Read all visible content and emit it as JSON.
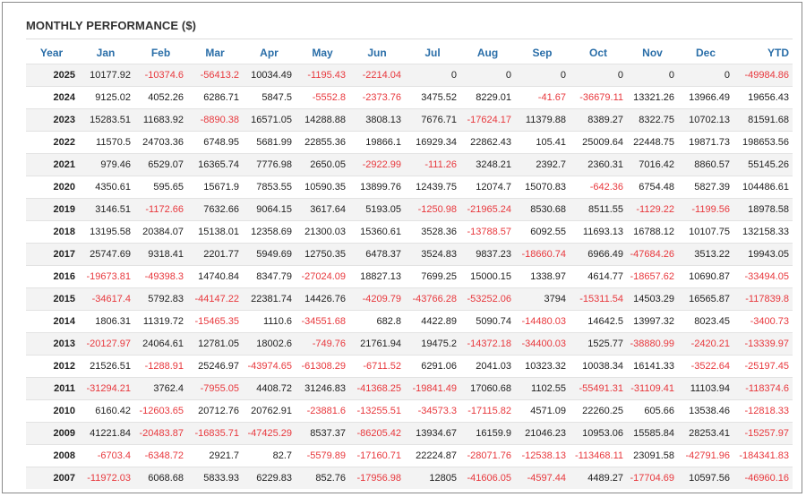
{
  "title": "MONTHLY PERFORMANCE ($)",
  "colors": {
    "header": "#2a6ea8",
    "negative": "#e8383d",
    "positive": "#222222",
    "stripe": "#f3f3f3"
  },
  "chart_data": {
    "type": "table",
    "title": "MONTHLY PERFORMANCE ($)",
    "columns": [
      "Year",
      "Jan",
      "Feb",
      "Mar",
      "Apr",
      "May",
      "Jun",
      "Jul",
      "Aug",
      "Sep",
      "Oct",
      "Nov",
      "Dec",
      "YTD"
    ],
    "rows": [
      [
        "2025",
        "10177.92",
        "-10374.6",
        "-56413.2",
        "10034.49",
        "-1195.43",
        "-2214.04",
        "0",
        "0",
        "0",
        "0",
        "0",
        "0",
        "-49984.86"
      ],
      [
        "2024",
        "9125.02",
        "4052.26",
        "6286.71",
        "5847.5",
        "-5552.8",
        "-2373.76",
        "3475.52",
        "8229.01",
        "-41.67",
        "-36679.11",
        "13321.26",
        "13966.49",
        "19656.43"
      ],
      [
        "2023",
        "15283.51",
        "11683.92",
        "-8890.38",
        "16571.05",
        "14288.88",
        "3808.13",
        "7676.71",
        "-17624.17",
        "11379.88",
        "8389.27",
        "8322.75",
        "10702.13",
        "81591.68"
      ],
      [
        "2022",
        "11570.5",
        "24703.36",
        "6748.95",
        "5681.99",
        "22855.36",
        "19866.1",
        "16929.34",
        "22862.43",
        "105.41",
        "25009.64",
        "22448.75",
        "19871.73",
        "198653.56"
      ],
      [
        "2021",
        "979.46",
        "6529.07",
        "16365.74",
        "7776.98",
        "2650.05",
        "-2922.99",
        "-111.26",
        "3248.21",
        "2392.7",
        "2360.31",
        "7016.42",
        "8860.57",
        "55145.26"
      ],
      [
        "2020",
        "4350.61",
        "595.65",
        "15671.9",
        "7853.55",
        "10590.35",
        "13899.76",
        "12439.75",
        "12074.7",
        "15070.83",
        "-642.36",
        "6754.48",
        "5827.39",
        "104486.61"
      ],
      [
        "2019",
        "3146.51",
        "-1172.66",
        "7632.66",
        "9064.15",
        "3617.64",
        "5193.05",
        "-1250.98",
        "-21965.24",
        "8530.68",
        "8511.55",
        "-1129.22",
        "-1199.56",
        "18978.58"
      ],
      [
        "2018",
        "13195.58",
        "20384.07",
        "15138.01",
        "12358.69",
        "21300.03",
        "15360.61",
        "3528.36",
        "-13788.57",
        "6092.55",
        "11693.13",
        "16788.12",
        "10107.75",
        "132158.33"
      ],
      [
        "2017",
        "25747.69",
        "9318.41",
        "2201.77",
        "5949.69",
        "12750.35",
        "6478.37",
        "3524.83",
        "9837.23",
        "-18660.74",
        "6966.49",
        "-47684.26",
        "3513.22",
        "19943.05"
      ],
      [
        "2016",
        "-19673.81",
        "-49398.3",
        "14740.84",
        "8347.79",
        "-27024.09",
        "18827.13",
        "7699.25",
        "15000.15",
        "1338.97",
        "4614.77",
        "-18657.62",
        "10690.87",
        "-33494.05"
      ],
      [
        "2015",
        "-34617.4",
        "5792.83",
        "-44147.22",
        "22381.74",
        "14426.76",
        "-4209.79",
        "-43766.28",
        "-53252.06",
        "3794",
        "-15311.54",
        "14503.29",
        "16565.87",
        "-117839.8"
      ],
      [
        "2014",
        "1806.31",
        "11319.72",
        "-15465.35",
        "1110.6",
        "-34551.68",
        "682.8",
        "4422.89",
        "5090.74",
        "-14480.03",
        "14642.5",
        "13997.32",
        "8023.45",
        "-3400.73"
      ],
      [
        "2013",
        "-20127.97",
        "24064.61",
        "12781.05",
        "18002.6",
        "-749.76",
        "21761.94",
        "19475.2",
        "-14372.18",
        "-34400.03",
        "1525.77",
        "-38880.99",
        "-2420.21",
        "-13339.97"
      ],
      [
        "2012",
        "21526.51",
        "-1288.91",
        "25246.97",
        "-43974.65",
        "-61308.29",
        "-6711.52",
        "6291.06",
        "2041.03",
        "10323.32",
        "10038.34",
        "16141.33",
        "-3522.64",
        "-25197.45"
      ],
      [
        "2011",
        "-31294.21",
        "3762.4",
        "-7955.05",
        "4408.72",
        "31246.83",
        "-41368.25",
        "-19841.49",
        "17060.68",
        "1102.55",
        "-55491.31",
        "-31109.41",
        "11103.94",
        "-118374.6"
      ],
      [
        "2010",
        "6160.42",
        "-12603.65",
        "20712.76",
        "20762.91",
        "-23881.6",
        "-13255.51",
        "-34573.3",
        "-17115.82",
        "4571.09",
        "22260.25",
        "605.66",
        "13538.46",
        "-12818.33"
      ],
      [
        "2009",
        "41221.84",
        "-20483.87",
        "-16835.71",
        "-47425.29",
        "8537.37",
        "-86205.42",
        "13934.67",
        "16159.9",
        "21046.23",
        "10953.06",
        "15585.84",
        "28253.41",
        "-15257.97"
      ],
      [
        "2008",
        "-6703.4",
        "-6348.72",
        "2921.7",
        "82.7",
        "-5579.89",
        "-17160.71",
        "22224.87",
        "-28071.76",
        "-12538.13",
        "-113468.11",
        "23091.58",
        "-42791.96",
        "-184341.83"
      ],
      [
        "2007",
        "-11972.03",
        "6068.68",
        "5833.93",
        "6229.83",
        "852.76",
        "-17956.98",
        "12805",
        "-41606.05",
        "-4597.44",
        "4489.27",
        "-17704.69",
        "10597.56",
        "-46960.16"
      ]
    ]
  }
}
